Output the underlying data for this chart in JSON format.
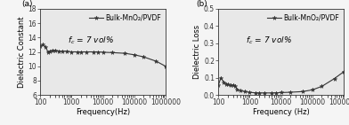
{
  "panel_a": {
    "label": "(a)",
    "ylabel": "Dielectric Constant",
    "xlabel": "Frequency(Hz)",
    "ylim": [
      6,
      18
    ],
    "yticks": [
      6,
      8,
      10,
      12,
      14,
      16,
      18
    ],
    "xlim": [
      100,
      1000000
    ],
    "legend_label": "Bulk-MnO₂/PVDF",
    "annotation_fc": "$f_c$",
    "annotation_val": " = 7 vol%",
    "freq": [
      100,
      120,
      150,
      180,
      200,
      250,
      300,
      400,
      500,
      700,
      1000,
      1500,
      2000,
      3000,
      5000,
      7000,
      10000,
      20000,
      50000,
      100000,
      200000,
      500000,
      1000000
    ],
    "values": [
      12.8,
      13.0,
      12.7,
      11.9,
      12.1,
      12.2,
      12.2,
      12.1,
      12.1,
      12.1,
      12.0,
      12.0,
      12.0,
      12.0,
      12.0,
      12.0,
      11.95,
      11.9,
      11.8,
      11.6,
      11.3,
      10.7,
      10.0
    ]
  },
  "panel_b": {
    "label": "(b)",
    "ylabel": "Dielectric Loss",
    "xlabel": "Frequency (Hz)",
    "ylim": [
      0,
      0.5
    ],
    "yticks": [
      0.0,
      0.1,
      0.2,
      0.3,
      0.4,
      0.5
    ],
    "xlim": [
      100,
      1000000
    ],
    "legend_label": "Bulk-MnO₂/PVDF",
    "annotation_fc": "$f_c$",
    "annotation_val": " = 7 vol%",
    "freq": [
      100,
      120,
      150,
      180,
      200,
      250,
      300,
      350,
      400,
      500,
      700,
      1000,
      1500,
      2000,
      3000,
      5000,
      7000,
      10000,
      20000,
      50000,
      100000,
      200000,
      500000,
      1000000
    ],
    "values": [
      0.055,
      0.1,
      0.075,
      0.065,
      0.062,
      0.055,
      0.058,
      0.05,
      0.032,
      0.025,
      0.02,
      0.015,
      0.013,
      0.012,
      0.012,
      0.012,
      0.013,
      0.014,
      0.016,
      0.02,
      0.03,
      0.05,
      0.095,
      0.135
    ]
  },
  "line_color": "#333333",
  "marker": "*",
  "markersize": 3.5,
  "linewidth": 0.8,
  "font_size": 6.5,
  "label_fontsize": 6.0,
  "tick_fontsize": 5.5,
  "legend_fontsize": 5.5,
  "bg_color": "#f0f0f0",
  "xtick_labels": [
    "100",
    "1000",
    "10000",
    "100000",
    "1000000"
  ]
}
